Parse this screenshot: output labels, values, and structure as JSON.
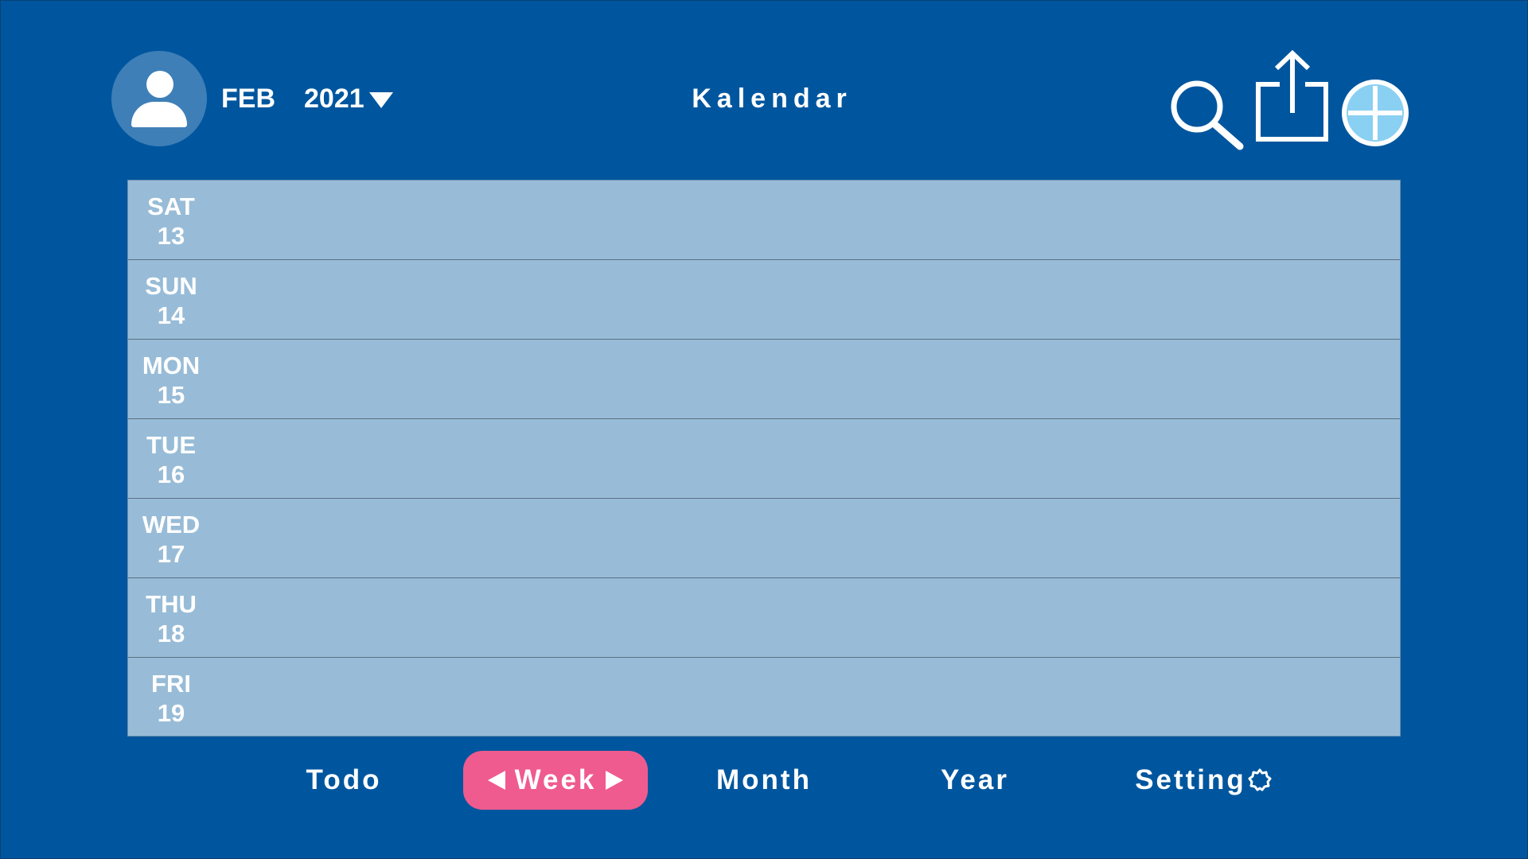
{
  "header": {
    "month": "FEB",
    "year": "2021",
    "title": "Kalendar",
    "icons": {
      "avatar": "user-avatar-icon",
      "year_dropdown": "caret-down-icon",
      "search": "search-icon",
      "share": "share-icon",
      "add": "add-icon"
    }
  },
  "week": {
    "days": [
      {
        "day": "SAT",
        "date": "13"
      },
      {
        "day": "SUN",
        "date": "14"
      },
      {
        "day": "MON",
        "date": "15"
      },
      {
        "day": "TUE",
        "date": "16"
      },
      {
        "day": "WED",
        "date": "17"
      },
      {
        "day": "THU",
        "date": "18"
      },
      {
        "day": "FRI",
        "date": "19"
      }
    ]
  },
  "tabs": {
    "todo": "Todo",
    "week": "Week",
    "month": "Month",
    "year": "Year",
    "setting": "Setting",
    "active": "week",
    "setting_icon": "gear-icon",
    "week_arrows": [
      "arrow-left-icon",
      "arrow-right-icon"
    ]
  },
  "colors": {
    "background": "#00569e",
    "week_panel": "#98bcd7",
    "active_tab": "#ef5b8e",
    "add_icon_fill": "#8ad0f2",
    "avatar_bg": "#3e7fb8"
  }
}
